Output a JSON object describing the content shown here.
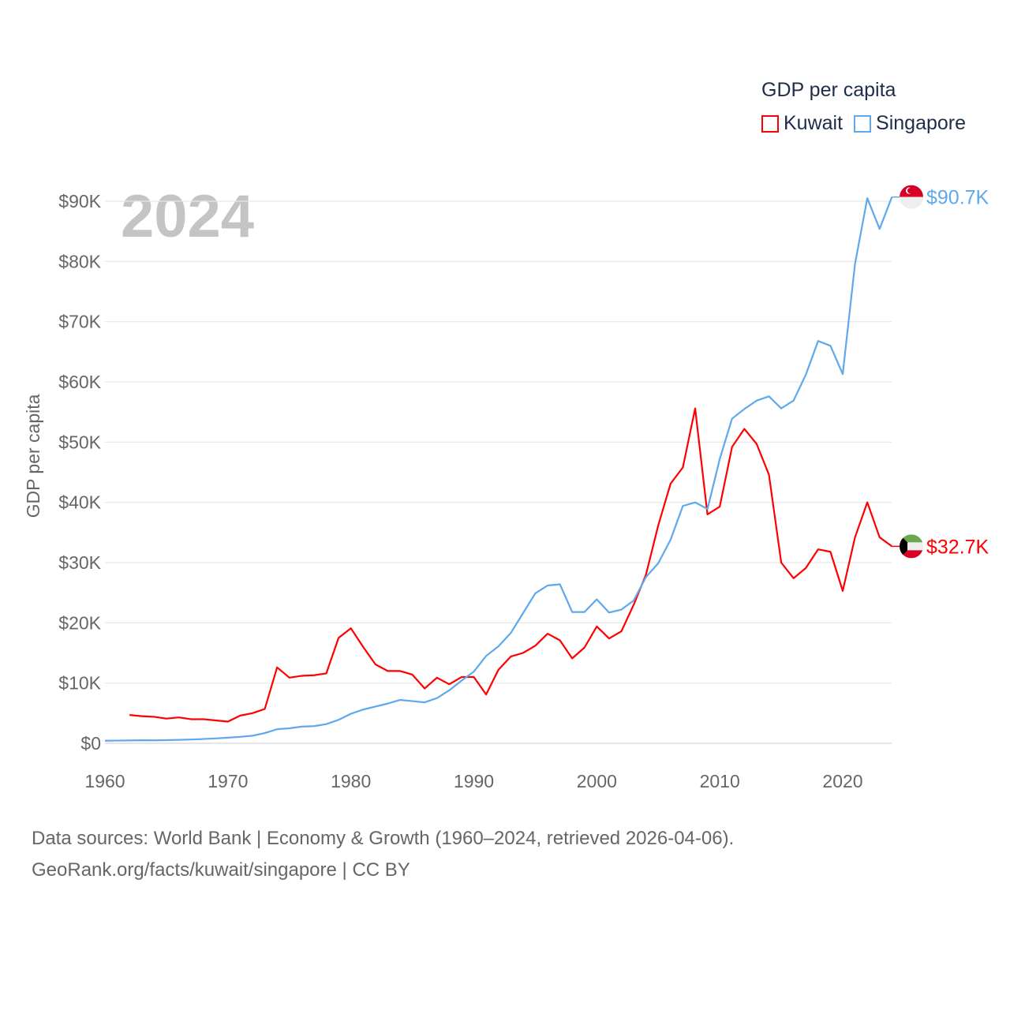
{
  "chart_data": {
    "type": "line",
    "title": "GDP per capita",
    "year_label": "2024",
    "xlabel": "",
    "ylabel": "GDP per capita",
    "xlim": [
      1960,
      2024
    ],
    "ylim": [
      0,
      90000
    ],
    "x_ticks": [
      1960,
      1970,
      1980,
      1990,
      2000,
      2010,
      2020
    ],
    "x_tick_labels": [
      "1960",
      "1970",
      "1980",
      "1990",
      "2000",
      "2010",
      "2020"
    ],
    "y_ticks": [
      0,
      10000,
      20000,
      30000,
      40000,
      50000,
      60000,
      70000,
      80000,
      90000
    ],
    "y_tick_labels": [
      "$0",
      "$10K",
      "$20K",
      "$30K",
      "$40K",
      "$50K",
      "$60K",
      "$70K",
      "$80K",
      "$90K"
    ],
    "grid": true,
    "legend_position": "top-right",
    "series": [
      {
        "name": "Kuwait",
        "color": "#ff0000",
        "flag": "kuwait-flag",
        "end_label": "$32.7K",
        "start_year": 1962,
        "values": [
          4700,
          4500,
          4400,
          4100,
          4300,
          4000,
          4000,
          3800,
          3600,
          4600,
          5000,
          5700,
          12600,
          10900,
          11200,
          11300,
          11600,
          17500,
          19100,
          16000,
          13100,
          12000,
          12000,
          11400,
          9100,
          10900,
          9800,
          11000,
          11000,
          8100,
          12200,
          14400,
          15000,
          16200,
          18200,
          17100,
          14100,
          15900,
          19400,
          17400,
          18600,
          23000,
          28000,
          36200,
          43100,
          45800,
          55600,
          38000,
          39300,
          49200,
          52200,
          49700,
          44600,
          30000,
          27400,
          29100,
          32200,
          31800,
          25300,
          34200,
          40000,
          34200,
          32700
        ]
      },
      {
        "name": "Singapore",
        "color": "#5ea8ec",
        "flag": "singapore-flag",
        "end_label": "$90.7K",
        "start_year": 1960,
        "values": [
          430,
          450,
          470,
          510,
          490,
          520,
          570,
          630,
          710,
          810,
          930,
          1070,
          1260,
          1690,
          2340,
          2490,
          2770,
          2850,
          3190,
          3900,
          4900,
          5600,
          6100,
          6600,
          7200,
          7000,
          6800,
          7500,
          8800,
          10400,
          11900,
          14500,
          16100,
          18300,
          21600,
          24900,
          26200,
          26400,
          21800,
          21800,
          23900,
          21700,
          22200,
          23700,
          27600,
          29900,
          33800,
          39400,
          40000,
          38900,
          47200,
          53900,
          55500,
          56900,
          57600,
          55600,
          56900,
          61200,
          66800,
          66000,
          61300,
          79600,
          90500,
          85400,
          90700
        ]
      }
    ]
  },
  "footer": {
    "line1": "Data sources: World Bank | Economy & Growth (1960–2024, retrieved 2026-04-06).",
    "line2": "GeoRank.org/facts/kuwait/singapore | CC BY"
  }
}
